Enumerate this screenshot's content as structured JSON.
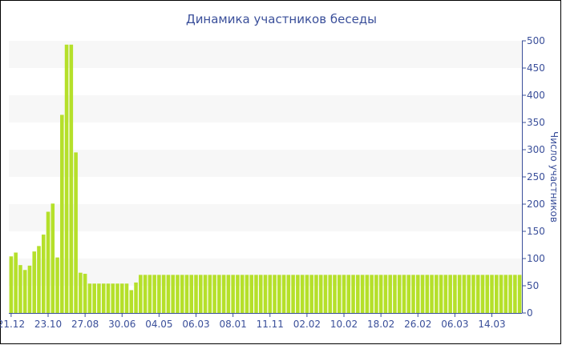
{
  "chart_data": {
    "type": "bar",
    "title": "Динамика участников беседы",
    "ylabel": "Число участников",
    "xlabel": "",
    "ylim": [
      0,
      500
    ],
    "yticks": [
      0,
      50,
      100,
      150,
      200,
      250,
      300,
      350,
      400,
      450,
      500
    ],
    "y_axis_position": "right",
    "grid": "alternating horizontal bands",
    "bar_color": "#b5e02a",
    "axis_color": "#3a4f9a",
    "xtick_labels": [
      "21.12",
      "23.10",
      "27.08",
      "30.06",
      "04.05",
      "06.03",
      "08.01",
      "11.11",
      "02.02",
      "10.02",
      "18.02",
      "26.02",
      "06.03",
      "14.03"
    ],
    "xtick_every_n_bars": 8,
    "values": [
      104,
      111,
      88,
      79,
      87,
      113,
      123,
      144,
      186,
      201,
      102,
      364,
      493,
      493,
      295,
      74,
      72,
      54,
      54,
      54,
      54,
      54,
      54,
      54,
      54,
      54,
      42,
      56,
      70,
      70,
      70,
      70,
      70,
      70,
      70,
      70,
      70,
      70,
      70,
      70,
      70,
      70,
      70,
      70,
      70,
      70,
      70,
      70,
      70,
      70,
      70,
      70,
      70,
      70,
      70,
      70,
      70,
      70,
      70,
      70,
      70,
      70,
      70,
      70,
      70,
      70,
      70,
      70,
      70,
      70,
      70,
      70,
      70,
      70,
      70,
      70,
      70,
      70,
      70,
      70,
      70,
      70,
      70,
      70,
      70,
      70,
      70,
      70,
      70,
      70,
      70,
      70,
      70,
      70,
      70,
      70,
      70,
      70,
      70,
      70,
      70,
      70,
      70,
      70,
      70,
      70,
      70,
      70,
      70,
      70,
      70
    ]
  }
}
